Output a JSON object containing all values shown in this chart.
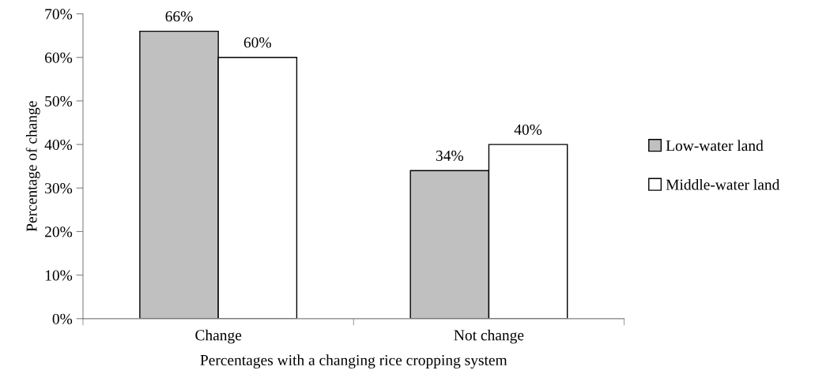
{
  "chart_data": {
    "type": "bar",
    "xlabel": "Percentages with a changing rice cropping system",
    "ylabel": "Percentage of change",
    "categories": [
      "Change",
      "Not change"
    ],
    "series": [
      {
        "name": "Low-water land",
        "color": "#c0c0c0",
        "values": [
          66,
          34
        ],
        "value_labels": [
          "66%",
          "34%"
        ]
      },
      {
        "name": "Middle-water land",
        "color": "#ffffff",
        "values": [
          60,
          40
        ],
        "value_labels": [
          "60%",
          "40%"
        ]
      }
    ],
    "ylim": [
      0,
      70
    ],
    "yticks": [
      {
        "value": 0,
        "label": "0%"
      },
      {
        "value": 10,
        "label": "10%"
      },
      {
        "value": 20,
        "label": "20%"
      },
      {
        "value": 30,
        "label": "30%"
      },
      {
        "value": 40,
        "label": "40%"
      },
      {
        "value": 50,
        "label": "50%"
      },
      {
        "value": 60,
        "label": "60%"
      },
      {
        "value": 70,
        "label": "70%"
      }
    ],
    "grid": false,
    "legend": "right"
  }
}
